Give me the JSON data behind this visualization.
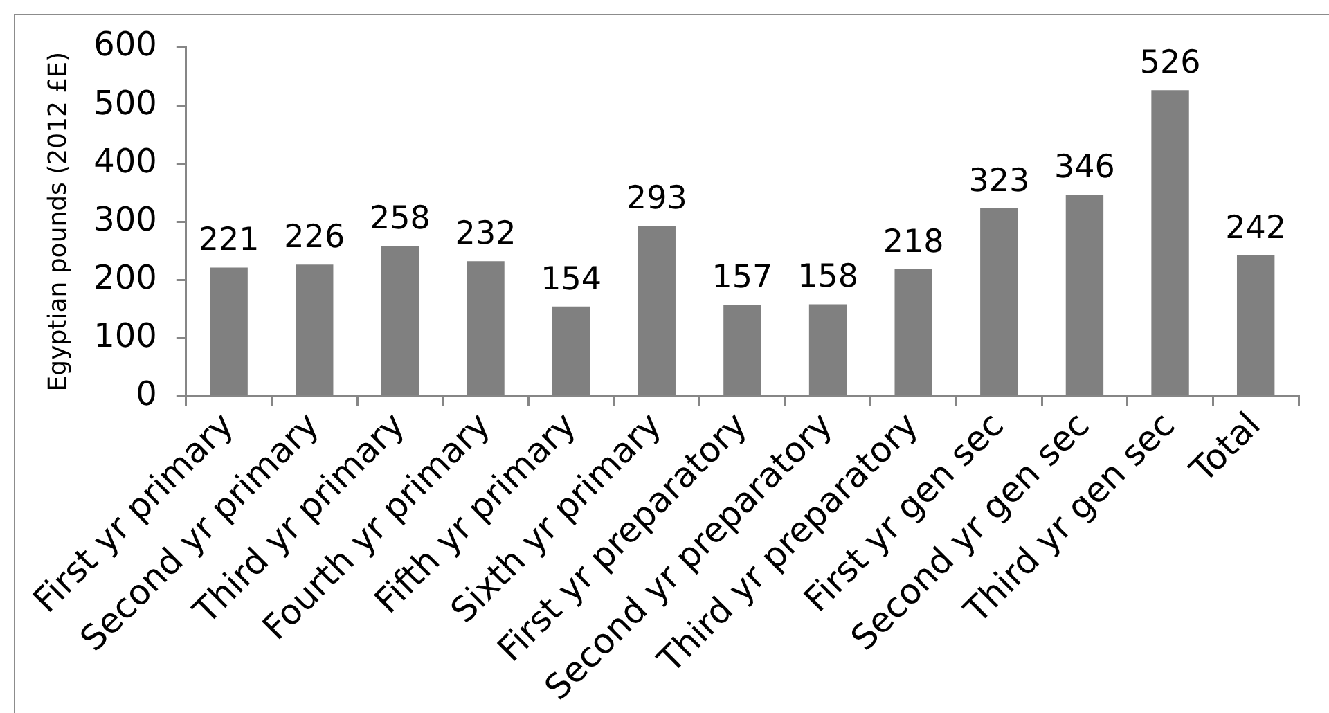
{
  "chart_data": {
    "type": "bar",
    "ylabel": "Egyptian pounds (2012 £E)",
    "categories": [
      "First yr primary",
      "Second yr primary",
      "Third yr primary",
      "Fourth yr primary",
      "Fifth yr primary",
      "Sixth yr primary",
      "First yr preparatory",
      "Second yr preparatory",
      "Third yr preparatory",
      "First yr gen sec",
      "Second yr gen sec",
      "Third yr gen sec",
      "Total"
    ],
    "values": [
      221,
      226,
      258,
      232,
      154,
      293,
      157,
      158,
      218,
      323,
      346,
      526,
      242
    ],
    "color": "#808080",
    "ylim": [
      0,
      600
    ],
    "yticks": [
      0,
      100,
      200,
      300,
      400,
      500,
      600
    ],
    "data_labels": true
  }
}
